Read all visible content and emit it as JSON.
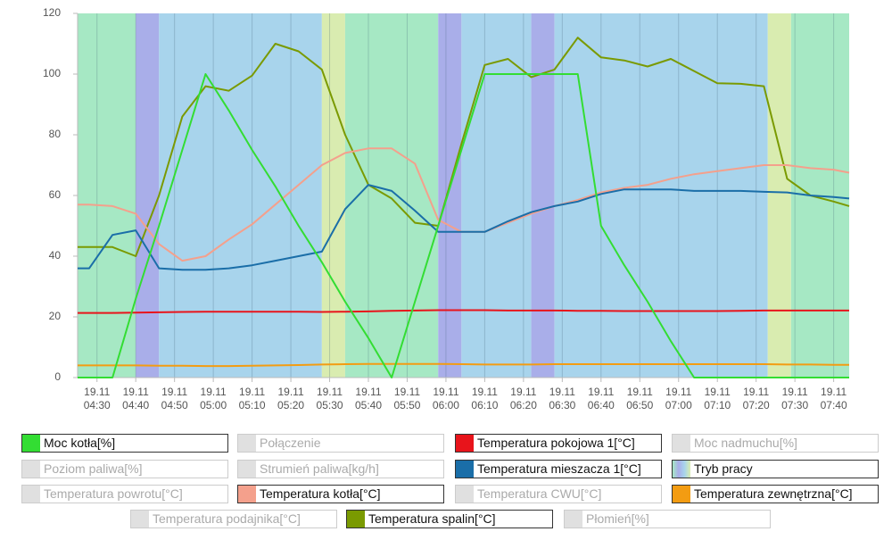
{
  "chart_data": {
    "type": "line",
    "x": [
      "04:25",
      "04:28",
      "04:34",
      "04:40",
      "04:46",
      "04:52",
      "04:58",
      "05:04",
      "05:10",
      "05:16",
      "05:22",
      "05:28",
      "05:34",
      "05:40",
      "05:46",
      "05:52",
      "05:58",
      "06:04",
      "06:10",
      "06:16",
      "06:22",
      "06:28",
      "06:34",
      "06:40",
      "06:46",
      "06:52",
      "06:58",
      "07:04",
      "07:10",
      "07:16",
      "07:22",
      "07:28",
      "07:34",
      "07:40",
      "07:44"
    ],
    "xlim": [
      "04:25",
      "07:44"
    ],
    "xticks": [
      {
        "value": "04:30",
        "label": "19.11 04:30"
      },
      {
        "value": "04:40",
        "label": "19.11 04:40"
      },
      {
        "value": "04:50",
        "label": "19.11 04:50"
      },
      {
        "value": "05:00",
        "label": "19.11 05:00"
      },
      {
        "value": "05:10",
        "label": "19.11 05:10"
      },
      {
        "value": "05:20",
        "label": "19.11 05:20"
      },
      {
        "value": "05:30",
        "label": "19.11 05:30"
      },
      {
        "value": "05:40",
        "label": "19.11 05:40"
      },
      {
        "value": "05:50",
        "label": "19.11 05:50"
      },
      {
        "value": "06:00",
        "label": "19.11 06:00"
      },
      {
        "value": "06:10",
        "label": "19.11 06:10"
      },
      {
        "value": "06:20",
        "label": "19.11 06:20"
      },
      {
        "value": "06:30",
        "label": "19.11 06:30"
      },
      {
        "value": "06:40",
        "label": "19.11 06:40"
      },
      {
        "value": "06:50",
        "label": "19.11 06:50"
      },
      {
        "value": "07:00",
        "label": "19.11 07:00"
      },
      {
        "value": "07:10",
        "label": "19.11 07:10"
      },
      {
        "value": "07:20",
        "label": "19.11 07:20"
      },
      {
        "value": "07:30",
        "label": "19.11 07:30"
      },
      {
        "value": "07:40",
        "label": "19.11 07:40"
      }
    ],
    "ylim": [
      0,
      120
    ],
    "yticks": [
      0,
      20,
      40,
      60,
      80,
      100,
      120
    ],
    "grid": true,
    "series": [
      {
        "name": "Moc kotła[%]",
        "color": "#33dd33",
        "visible": true,
        "values": [
          0,
          0,
          0,
          26,
          50,
          75,
          100,
          88,
          75,
          63,
          50,
          38,
          25,
          13,
          0,
          25,
          50,
          75,
          100,
          100,
          100,
          100,
          100,
          50,
          37,
          25,
          12,
          0,
          0,
          0,
          0,
          0,
          0,
          0,
          0
        ]
      },
      {
        "name": "Połączenie",
        "visible": false
      },
      {
        "name": "Temperatura pokojowa 1[°C]",
        "color": "#e8141b",
        "visible": true,
        "values": [
          21.3,
          21.3,
          21.3,
          21.4,
          21.5,
          21.6,
          21.7,
          21.7,
          21.7,
          21.7,
          21.7,
          21.6,
          21.7,
          21.8,
          22,
          22.1,
          22.2,
          22.2,
          22.2,
          22.1,
          22.1,
          22.1,
          22,
          22,
          21.9,
          21.9,
          21.9,
          21.9,
          21.9,
          22,
          22.1,
          22.1,
          22.1,
          22.1,
          22.1
        ]
      },
      {
        "name": "Moc nadmuchu[%]",
        "visible": false
      },
      {
        "name": "Poziom paliwa[%]",
        "visible": false
      },
      {
        "name": "Strumień paliwa[kg/h]",
        "visible": false
      },
      {
        "name": "Temperatura mieszacza 1[°C]",
        "color": "#1a6ea8",
        "visible": true,
        "values": [
          36,
          36,
          47,
          48.5,
          36,
          35.5,
          35.5,
          36,
          37,
          38.5,
          40,
          41.5,
          55.5,
          63.5,
          61.5,
          55,
          48,
          48,
          48,
          51.5,
          54.5,
          56.5,
          58,
          60.5,
          62,
          62,
          62,
          61.5,
          61.5,
          61.5,
          61.2,
          61,
          60,
          59.5,
          59
        ]
      },
      {
        "name": "Tryb pracy",
        "visible": true,
        "bands": [
          {
            "start": "04:25",
            "end": "04:40",
            "color": "#a6e8c4"
          },
          {
            "start": "04:40",
            "end": "04:46",
            "color": "#a9aee9"
          },
          {
            "start": "04:46",
            "end": "05:28",
            "color": "#a8d4ec"
          },
          {
            "start": "05:28",
            "end": "05:34",
            "color": "#d9ecb0"
          },
          {
            "start": "05:34",
            "end": "05:58",
            "color": "#a6e8c4"
          },
          {
            "start": "05:58",
            "end": "06:04",
            "color": "#a9aee9"
          },
          {
            "start": "06:04",
            "end": "06:22",
            "color": "#a8d4ec"
          },
          {
            "start": "06:22",
            "end": "06:28",
            "color": "#a9aee9"
          },
          {
            "start": "06:28",
            "end": "07:23",
            "color": "#a8d4ec"
          },
          {
            "start": "07:23",
            "end": "07:29",
            "color": "#d9ecb0"
          },
          {
            "start": "07:29",
            "end": "07:44",
            "color": "#a6e8c4"
          }
        ]
      },
      {
        "name": "Temperatura powrotu[°C]",
        "visible": false
      },
      {
        "name": "Temperatura kotła[°C]",
        "color": "#f4a08c",
        "visible": true,
        "values": [
          57,
          57,
          56.5,
          54,
          44,
          38.5,
          40,
          45.5,
          50.5,
          57,
          63.5,
          70,
          74,
          75.5,
          75.5,
          70.5,
          52,
          48,
          48,
          51,
          54,
          56.5,
          58.5,
          61,
          62.5,
          63.5,
          65.5,
          67,
          68,
          69,
          70,
          70,
          69,
          68.5,
          67.5
        ]
      },
      {
        "name": "Temperatura CWU[°C]",
        "visible": false
      },
      {
        "name": "Temperatura zewnętrzna[°C]",
        "color": "#f39c12",
        "visible": true,
        "values": [
          4,
          4,
          4,
          4,
          3.9,
          3.9,
          3.8,
          3.8,
          3.9,
          4,
          4.1,
          4.3,
          4.4,
          4.5,
          4.5,
          4.5,
          4.5,
          4.4,
          4.3,
          4.3,
          4.3,
          4.4,
          4.4,
          4.4,
          4.4,
          4.4,
          4.4,
          4.4,
          4.4,
          4.4,
          4.4,
          4.3,
          4.3,
          4.2,
          4.2
        ]
      },
      {
        "name": "Temperatura podajnika[°C]",
        "visible": false
      },
      {
        "name": "Temperatura spalin[°C]",
        "color": "#7a9a01",
        "visible": true,
        "values": [
          43,
          43,
          43,
          40,
          60,
          86,
          96,
          94.5,
          99.5,
          110,
          107.5,
          101.5,
          80,
          63.5,
          59,
          51,
          50,
          77,
          103,
          105,
          99,
          101.5,
          112,
          105.5,
          104.5,
          102.5,
          105,
          101,
          97,
          96.8,
          96,
          65.5,
          60,
          58,
          56.5
        ]
      },
      {
        "name": "Płomień[%]",
        "visible": false
      }
    ]
  }
}
